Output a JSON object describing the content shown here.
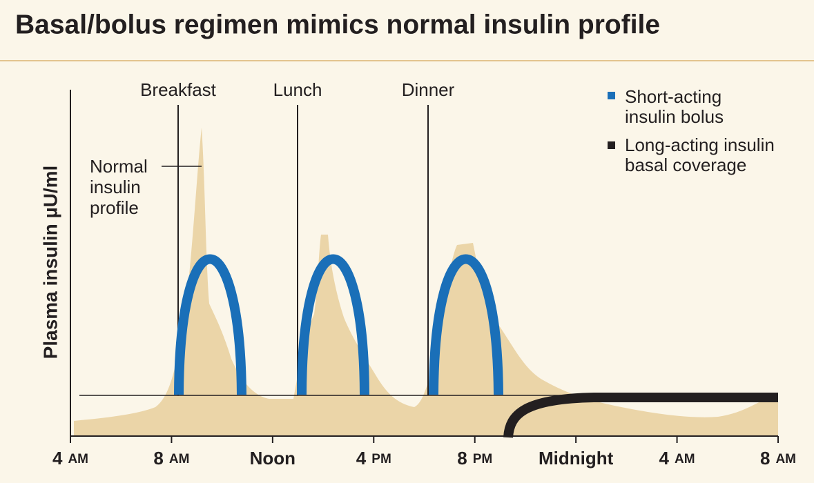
{
  "title": "Basal/bolus regimen mimics normal insulin profile",
  "y_axis_label": "Plasma insulin µU/ml",
  "meals": [
    "Breakfast",
    "Lunch",
    "Dinner"
  ],
  "annotation": [
    "Normal",
    "insulin",
    "profile"
  ],
  "legend": [
    {
      "lines": [
        "Short-acting",
        "insulin bolus"
      ]
    },
    {
      "lines": [
        "Long-acting insulin",
        "basal coverage"
      ]
    }
  ],
  "x_ticks": [
    {
      "main": "4",
      "suffix": "AM"
    },
    {
      "main": "8",
      "suffix": "AM"
    },
    {
      "main": "Noon"
    },
    {
      "main": "4",
      "suffix": "PM"
    },
    {
      "main": "8",
      "suffix": "PM"
    },
    {
      "main": "Midnight"
    },
    {
      "main": "4",
      "suffix": "AM"
    },
    {
      "main": "8",
      "suffix": "AM"
    }
  ]
}
